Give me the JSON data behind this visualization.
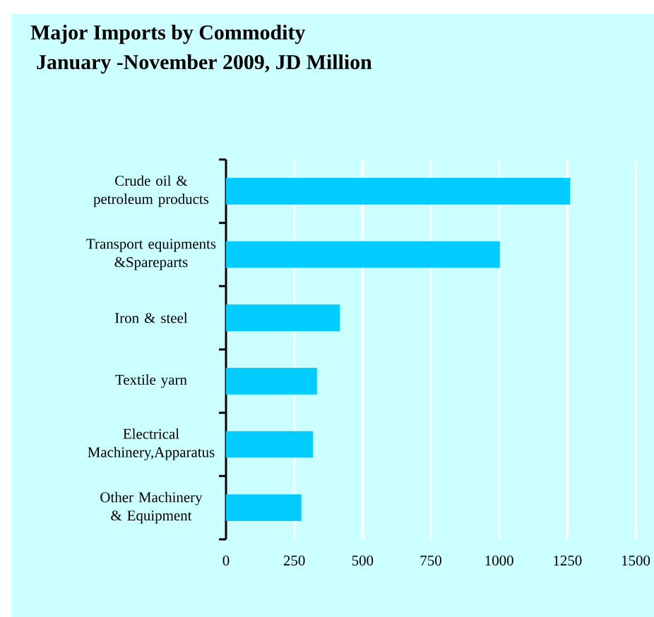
{
  "chart_data": {
    "type": "bar",
    "orientation": "horizontal",
    "title": "Major Imports by Commodity",
    "subtitle": "January -November  2009, JD Million",
    "categories": [
      "Crude oil & petroleum products",
      "Transport equipments &Spareparts",
      "Iron & steel",
      "Textile yarn",
      "Electrical Machinery,Apparatus",
      "Other Machinery & Equipment"
    ],
    "values": [
      1260,
      1003,
      417,
      333,
      318,
      276
    ],
    "color": "#00ccff",
    "xlim": [
      0,
      1500
    ],
    "xticks": [
      0,
      250,
      500,
      750,
      1000,
      1250,
      1500
    ],
    "grid": "x"
  }
}
